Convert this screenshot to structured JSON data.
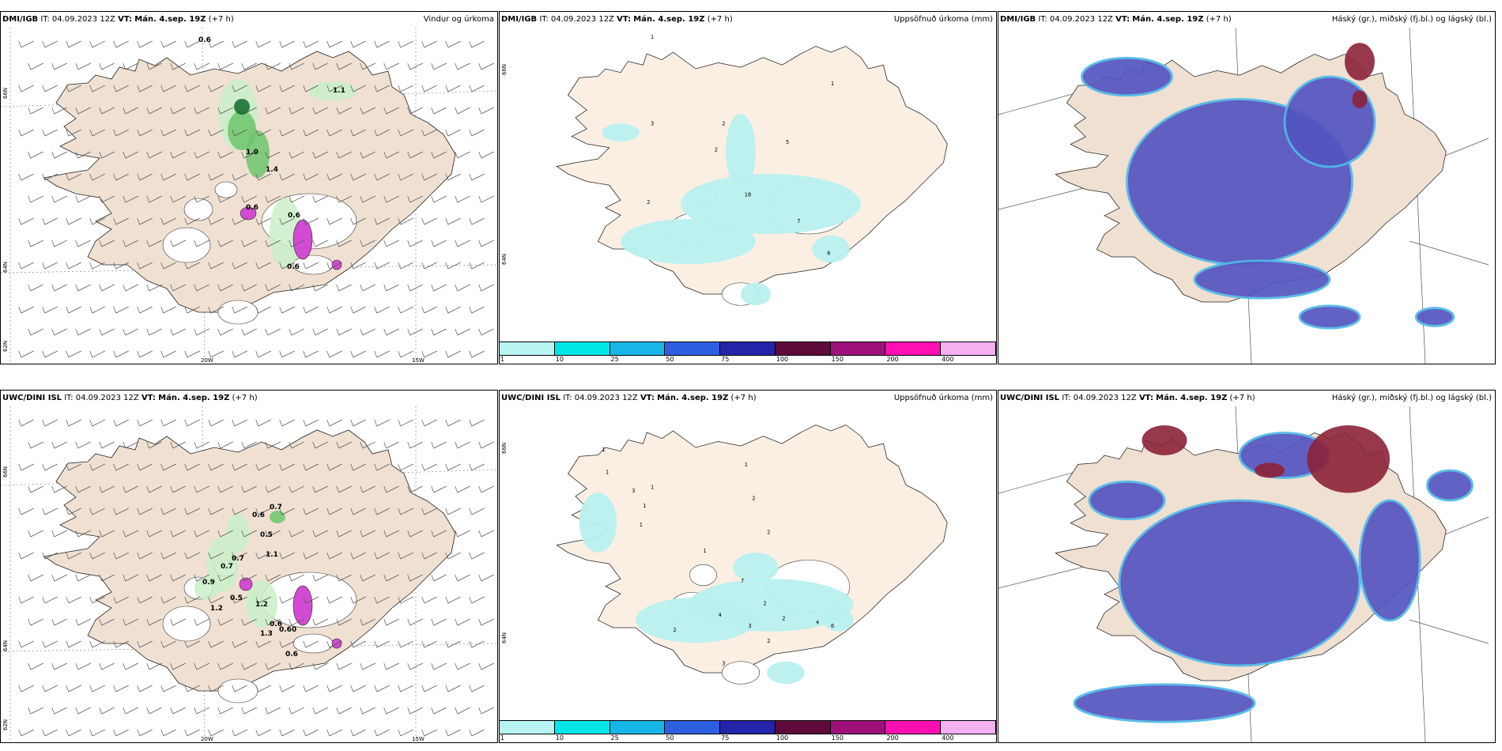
{
  "colors": {
    "land": "#efe0d2",
    "land_light": "#fbefe4",
    "glacier": "#ffffff",
    "precip_light": "#b8f0ef",
    "green_light": "#c9efc9",
    "green_mid": "#6dc46d",
    "green_dark": "#0e6b2a",
    "magenta": "#d24bd2",
    "cloud_blue": "#5555c0",
    "cloud_light": "#4fb8e8",
    "cloud_red": "#8c2238"
  },
  "panels": {
    "p1": {
      "model": "DMI/IGB",
      "it_label": "IT:",
      "it": "04.09.2023 12Z",
      "vt_label": "VT:",
      "vt": "Mán. 4.sep. 19Z",
      "lead": "(+7 h)",
      "title": "Vindur og úrkoma",
      "lon_w": "20W",
      "lon_e": "15W",
      "lat_top": "66N",
      "lat_mid": "64N",
      "lat_bot": "62N",
      "values": [
        "0.6",
        "1.1",
        "1.0",
        "1.4",
        "0.6",
        "0.6",
        "0.6"
      ]
    },
    "p2": {
      "model": "DMI/IGB",
      "it_label": "IT:",
      "it": "04.09.2023 12Z",
      "vt_label": "VT:",
      "vt": "Mán. 4.sep. 19Z",
      "lead": "(+7 h)",
      "title": "Uppsöfnuð úrkoma (mm)",
      "lat_top": "66N",
      "lat_mid": "64N",
      "values": [
        "1",
        "1",
        "3",
        "2",
        "2",
        "5",
        "2",
        "18",
        "7",
        "6"
      ]
    },
    "p3": {
      "model": "DMI/IGB",
      "it_label": "IT:",
      "it": "04.09.2023 12Z",
      "vt_label": "VT:",
      "vt": "Mán. 4.sep. 19Z",
      "lead": "(+7 h)",
      "title": "Háský (gr.), miðský (fj.bl.) og lágský (bl.)"
    },
    "p4": {
      "model": "UWC/DINI ISL",
      "it_label": "IT:",
      "it": "04.09.2023 12Z",
      "vt_label": "VT:",
      "vt": "Mán. 4.sep. 19Z",
      "lead": "(+7 h)",
      "title": "",
      "lon_w": "20W",
      "lon_e": "15W",
      "lat_top": "66N",
      "lat_mid": "64N",
      "lat_bot": "62N",
      "values": [
        "0.7",
        "0.6",
        "0.5",
        "1.1",
        "0.7",
        "0.7",
        "0.9",
        "0.5",
        "1.2",
        "1.2",
        "1.3",
        "0.6",
        "0.60",
        "0.6"
      ]
    },
    "p5": {
      "model": "UWC/DINI ISL",
      "it_label": "IT:",
      "it": "04.09.2023 12Z",
      "vt_label": "VT:",
      "vt": "Mán. 4.sep. 19Z",
      "lead": "(+7 h)",
      "title": "Uppsöfnuð úrkoma (mm)",
      "lat_top": "66N",
      "lat_mid": "64N",
      "values": [
        "1",
        "1",
        "1",
        "3",
        "1",
        "1",
        "1",
        "2",
        "2",
        "1",
        "7",
        "2",
        "4",
        "2",
        "3",
        "2",
        "2",
        "4",
        "6",
        "3"
      ]
    },
    "p6": {
      "model": "UWC/DINI ISL",
      "it_label": "IT:",
      "it": "04.09.2023 12Z",
      "vt_label": "VT:",
      "vt": "Mán. 4.sep. 19Z",
      "lead": "(+7 h)",
      "title": "Háský (gr.), miðský (fj.bl.) og lágský (bl.)"
    }
  },
  "colorbar": {
    "labels": [
      "1",
      "10",
      "25",
      "50",
      "75",
      "100",
      "150",
      "200",
      "400"
    ],
    "colors": [
      "#b8f4f4",
      "#00e6e6",
      "#18b6e8",
      "#2e5fe0",
      "#2424a8",
      "#5e0a3a",
      "#a0107a",
      "#ff10b0",
      "#f4b0f0"
    ]
  }
}
